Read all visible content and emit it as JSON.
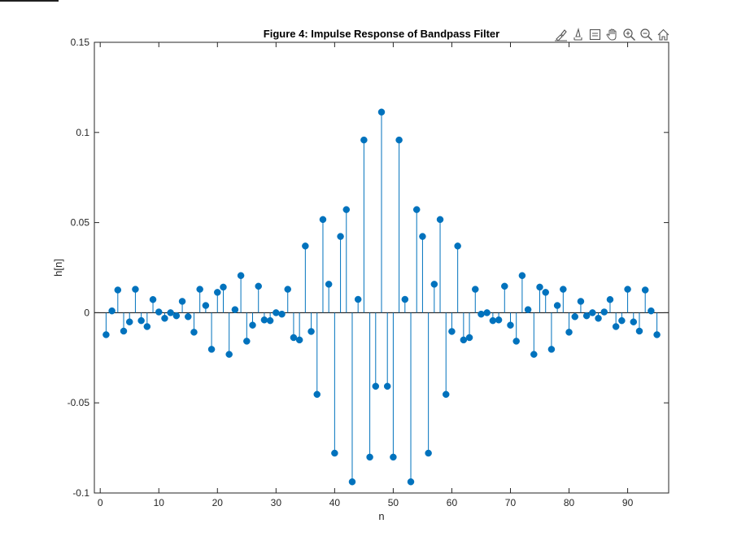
{
  "toolbar": {
    "icons": [
      "brush-icon",
      "export-icon",
      "datatips-icon",
      "pan-icon",
      "zoom-in-icon",
      "zoom-out-icon",
      "home-icon"
    ]
  },
  "colors": {
    "stem": "#0072BD",
    "axis": "#262626",
    "background": "#ffffff"
  },
  "chart_data": {
    "type": "stem",
    "title": "Figure 4: Impulse Response of Bandpass Filter",
    "xlabel": "n",
    "ylabel": "h[n]",
    "xlim": [
      -1,
      97
    ],
    "ylim": [
      -0.1,
      0.15
    ],
    "xticks": [
      0,
      10,
      20,
      30,
      40,
      50,
      60,
      70,
      80,
      90
    ],
    "xtick_labels": [
      "0",
      "10",
      "20",
      "30",
      "40",
      "50",
      "60",
      "70",
      "80",
      "90"
    ],
    "yticks": [
      -0.1,
      -0.05,
      0,
      0.05,
      0.1,
      0.15
    ],
    "ytick_labels": [
      "-0.1",
      "-0.05",
      "0",
      "0.05",
      "0.1",
      "0.15"
    ],
    "grid": false,
    "x": [
      1,
      2,
      3,
      4,
      5,
      6,
      7,
      8,
      9,
      10,
      11,
      12,
      13,
      14,
      15,
      16,
      17,
      18,
      19,
      20,
      21,
      22,
      23,
      24,
      25,
      26,
      27,
      28,
      29,
      30,
      31,
      32,
      33,
      34,
      35,
      36,
      37,
      38,
      39,
      40,
      41,
      42,
      43,
      44,
      45,
      46,
      47,
      48,
      49,
      50,
      51,
      52,
      53,
      54,
      55,
      56,
      57,
      58,
      59,
      60,
      61,
      62,
      63,
      64,
      65,
      66,
      67,
      68,
      69,
      70,
      71,
      72,
      73,
      74,
      75,
      76,
      77,
      78,
      79,
      80,
      81,
      82,
      83,
      84,
      85,
      86,
      87,
      88,
      89,
      90,
      91,
      92,
      93,
      94,
      95
    ],
    "y": [
      -0.0122,
      0.001,
      0.0126,
      -0.0102,
      -0.0051,
      0.013,
      -0.0044,
      -0.0077,
      0.0073,
      0.0004,
      -0.0031,
      0.0,
      -0.0017,
      0.0063,
      -0.0022,
      -0.0108,
      0.013,
      0.004,
      -0.0203,
      0.0113,
      0.0142,
      -0.0231,
      0.0017,
      0.0206,
      -0.0158,
      -0.0069,
      0.0147,
      -0.004,
      -0.0044,
      0.0,
      -0.0008,
      0.013,
      -0.0138,
      -0.0151,
      0.037,
      -0.0104,
      -0.0453,
      0.0517,
      0.0158,
      -0.0779,
      0.0423,
      0.0572,
      -0.0938,
      0.0074,
      0.0958,
      -0.0801,
      -0.0408,
      0.1113,
      -0.0408,
      -0.0801,
      0.0958,
      0.0074,
      -0.0938,
      0.0572,
      0.0423,
      -0.0779,
      0.0158,
      0.0517,
      -0.0453,
      -0.0104,
      0.037,
      -0.0151,
      -0.0138,
      0.013,
      -0.0008,
      0.0,
      -0.0044,
      -0.004,
      0.0147,
      -0.0069,
      -0.0158,
      0.0206,
      0.0017,
      -0.0231,
      0.0142,
      0.0113,
      -0.0203,
      0.004,
      0.013,
      -0.0108,
      -0.0022,
      0.0063,
      -0.0017,
      0.0,
      -0.0031,
      0.0004,
      0.0073,
      -0.0077,
      -0.0044,
      0.013,
      -0.0051,
      -0.0102,
      0.0126,
      0.001,
      -0.0122
    ]
  }
}
